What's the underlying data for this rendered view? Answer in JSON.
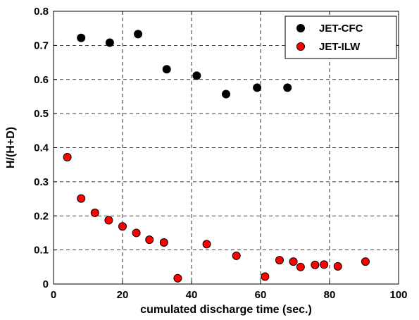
{
  "chart_data": {
    "type": "scatter",
    "xlabel": "cumulated discharge time (sec.)",
    "ylabel": "H/(H+D)",
    "xlim": [
      0,
      100
    ],
    "ylim": [
      0,
      0.8
    ],
    "xticks": [
      0,
      20,
      40,
      60,
      80,
      100
    ],
    "yticks": [
      0,
      0.1,
      0.2,
      0.3,
      0.4,
      0.5,
      0.6,
      0.7,
      0.8
    ],
    "xtick_labels": [
      "0",
      "20",
      "40",
      "60",
      "80",
      "100"
    ],
    "ytick_labels": [
      "0",
      "0.1",
      "0.2",
      "0.3",
      "0.4",
      "0.5",
      "0.6",
      "0.7",
      "0.8"
    ],
    "grid": true,
    "legend_position": "top-right",
    "series": [
      {
        "name": "JET-CFC",
        "color": "#000000",
        "x": [
          8,
          16.3,
          24.5,
          32.8,
          41.5,
          50,
          59,
          67.8
        ],
        "y": [
          0.722,
          0.708,
          0.733,
          0.63,
          0.611,
          0.557,
          0.576,
          0.576
        ]
      },
      {
        "name": "JET-ILW",
        "color": "#ff0000",
        "x": [
          4,
          8,
          12,
          16,
          20,
          24,
          27.8,
          32,
          36,
          44.4,
          53,
          61.3,
          65.5,
          69.5,
          71.6,
          75.8,
          78.4,
          82.4,
          90.4
        ],
        "y": [
          0.372,
          0.251,
          0.209,
          0.187,
          0.169,
          0.15,
          0.13,
          0.122,
          0.017,
          0.117,
          0.083,
          0.022,
          0.07,
          0.066,
          0.05,
          0.056,
          0.057,
          0.052,
          0.066
        ]
      }
    ]
  }
}
